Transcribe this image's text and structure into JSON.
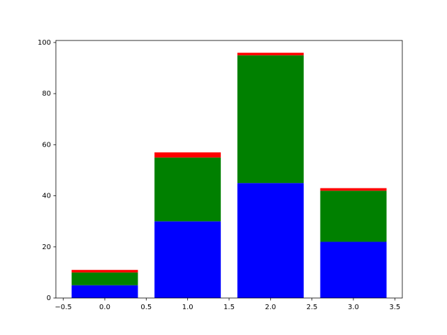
{
  "chart_data": {
    "type": "stacked_bar",
    "x": [
      0,
      1,
      2,
      3
    ],
    "bar_width": 0.8,
    "series": [
      {
        "color": "#0000ff",
        "values": [
          5,
          30,
          45,
          22
        ]
      },
      {
        "color": "#008000",
        "values": [
          5,
          25,
          50,
          20
        ]
      },
      {
        "color": "#ff0000",
        "values": [
          1,
          2,
          1,
          1
        ]
      }
    ],
    "xlim": [
      -0.59,
      3.59
    ],
    "xticks": [
      {
        "value": -0.5,
        "label": "−0.5"
      },
      {
        "value": 0,
        "label": "0.0"
      },
      {
        "value": 0.5,
        "label": "0.5"
      },
      {
        "value": 1,
        "label": "1.0"
      },
      {
        "value": 1.5,
        "label": "1.5"
      },
      {
        "value": 2,
        "label": "2.0"
      },
      {
        "value": 2.5,
        "label": "2.5"
      },
      {
        "value": 3,
        "label": "3.0"
      },
      {
        "value": 3.5,
        "label": "3.5"
      }
    ],
    "ylim": [
      0,
      100.8
    ],
    "yticks": [
      0,
      20,
      40,
      60,
      80,
      100
    ],
    "grid": false
  }
}
